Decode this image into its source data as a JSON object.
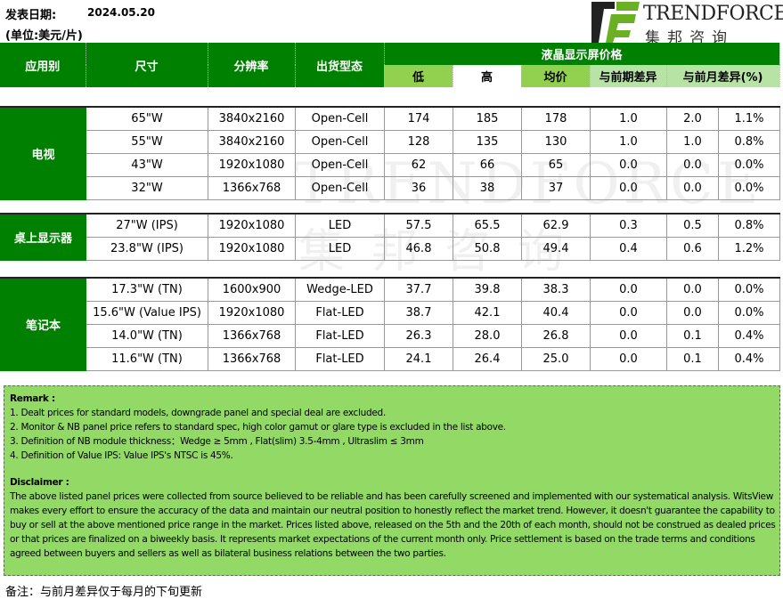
{
  "header": {
    "date_label": "发表日期:",
    "date": "2024.05.20",
    "unit": "(单位:美元/片)"
  },
  "logo": {
    "name": "TRENDFORCE",
    "cn": "集邦咨询",
    "colors": {
      "dark": "#222222",
      "green": "#6ab023"
    }
  },
  "columns": {
    "app": "应用别",
    "size": "尺寸",
    "res": "分辨率",
    "ship": "出货型态",
    "price_group": "液晶显示屏价格",
    "low": "低",
    "high": "高",
    "avg": "均价",
    "diff_prev": "与前期差异",
    "diff_month": "与前月差异(%)"
  },
  "groups": [
    {
      "name": "电视",
      "rows": [
        [
          "65\"W",
          "3840x2160",
          "Open-Cell",
          "174",
          "185",
          "178",
          "1.0",
          "2.0",
          "1.1%"
        ],
        [
          "55\"W",
          "3840x2160",
          "Open-Cell",
          "128",
          "135",
          "130",
          "1.0",
          "1.0",
          "0.8%"
        ],
        [
          "43\"W",
          "1920x1080",
          "Open-Cell",
          "62",
          "66",
          "65",
          "0.0",
          "0.0",
          "0.0%"
        ],
        [
          "32\"W",
          "1366x768",
          "Open-Cell",
          "36",
          "38",
          "37",
          "0.0",
          "0.0",
          "0.0%"
        ]
      ]
    },
    {
      "name": "桌上显示器",
      "rows": [
        [
          "27\"W (IPS)",
          "1920x1080",
          "LED",
          "57.5",
          "65.5",
          "62.9",
          "0.3",
          "0.5",
          "0.8%"
        ],
        [
          "23.8\"W (IPS)",
          "1920x1080",
          "LED",
          "46.8",
          "50.8",
          "49.4",
          "0.4",
          "0.6",
          "1.2%"
        ]
      ]
    },
    {
      "name": "笔记本",
      "rows": [
        [
          "17.3\"W (TN)",
          "1600x900",
          "Wedge-LED",
          "37.7",
          "39.8",
          "38.3",
          "0.0",
          "0.0",
          "0.0%"
        ],
        [
          "15.6\"W (Value IPS)",
          "1920x1080",
          "Flat-LED",
          "38.7",
          "42.1",
          "40.4",
          "0.0",
          "0.0",
          "0.0%"
        ],
        [
          "14.0\"W (TN)",
          "1366x768",
          "Flat-LED",
          "26.3",
          "28.0",
          "26.8",
          "0.0",
          "0.1",
          "0.4%"
        ],
        [
          "11.6\"W (TN)",
          "1366x768",
          "Flat-LED",
          "24.1",
          "26.4",
          "25.0",
          "0.0",
          "0.1",
          "0.4%"
        ]
      ]
    }
  ],
  "remark": {
    "title": "Remark :",
    "items": [
      "1. Dealt prices for standard models, downgrade panel and special deal are excluded.",
      "2. Monitor & NB panel price refers to standard spec, high color gamut or glare type is excluded in the list above.",
      "3. Definition of NB module thickness：Wedge ≥ 5mm , Flat(slim) 3.5-4mm , Ultraslim ≤ 3mm",
      "4. Definition of Value IPS: Value IPS's NTSC is 45%."
    ]
  },
  "disclaimer": {
    "title": "Disclaimer :",
    "text": "The above listed panel prices were collected from source believed to be reliable and has been carefully screened and implemented with our systematical analysis. WitsView makes every effort to ensure the accuracy of the data and maintain our neutral position to honestly reflect the market trend. However, it doesn't guarantee the capability to buy or sell at the above mentioned price range in the market. Prices listed above, released on the 5th and the 20th of each month, should not be construed as dealed prices or that prices are finalized on a biweekly basis. It represents market expectations of the current month only. Price settlement is based on the trade terms and conditions agreed between buyers and sellers as well as bilateral business relations between the two parties."
  },
  "footer": "备注：与前月差异仅于每月的下旬更新"
}
